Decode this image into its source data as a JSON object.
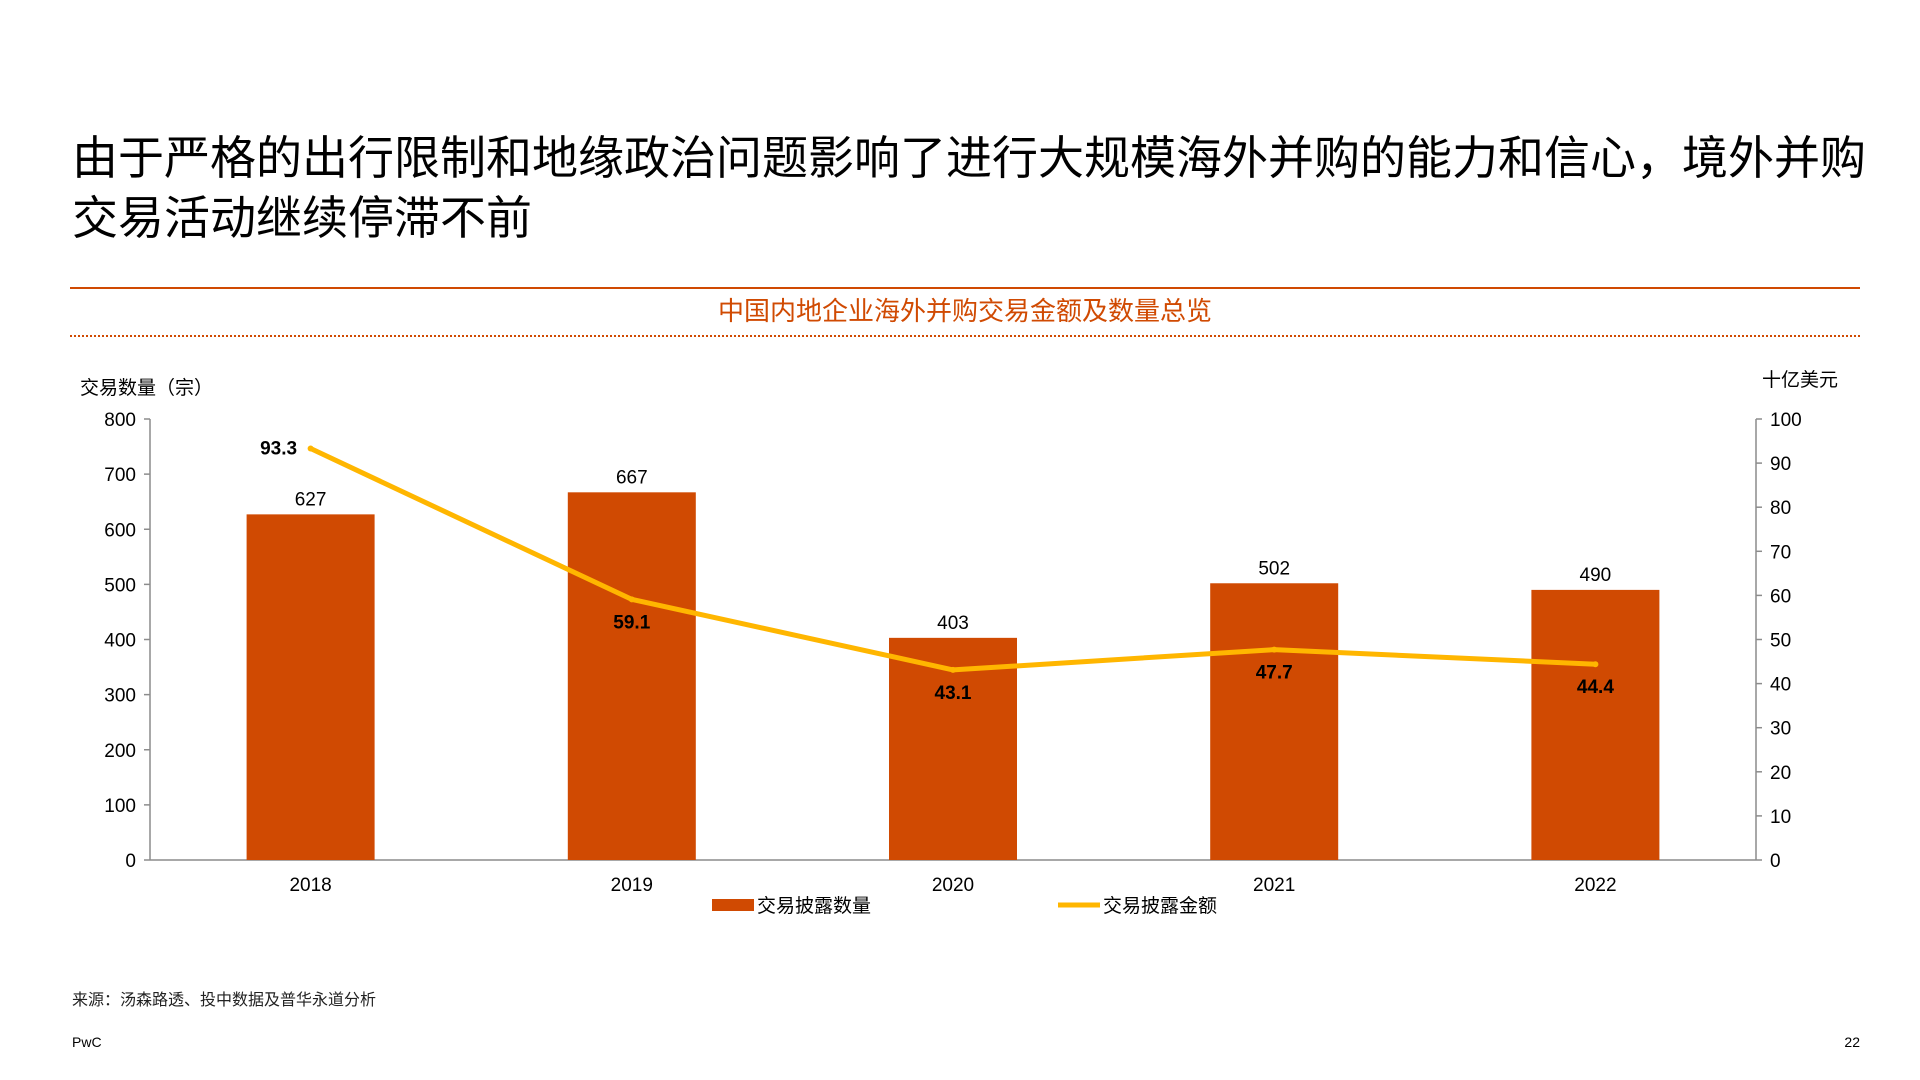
{
  "title": "由于严格的出行限制和地缘政治问题影响了进行大规模海外并购的能力和信心，境外并购交易活动继续停滞不前",
  "colors": {
    "accent": "#d04a02",
    "bar": "#d04a02",
    "line": "#ffb600"
  },
  "chart_data": {
    "type": "bar",
    "title": "中国内地企业海外并购交易金额及数量总览",
    "categories": [
      "2018",
      "2019",
      "2020",
      "2021",
      "2022"
    ],
    "y_left_label": "交易数量（宗）",
    "y_right_label": "十亿美元",
    "ylim_left": [
      0,
      800
    ],
    "ylim_right": [
      0,
      100
    ],
    "yticks_left": [
      0,
      100,
      200,
      300,
      400,
      500,
      600,
      700,
      800
    ],
    "yticks_right": [
      0,
      10,
      20,
      30,
      40,
      50,
      60,
      70,
      80,
      90,
      100
    ],
    "series": [
      {
        "name": "交易披露数量",
        "type": "bar",
        "axis": "left",
        "values": [
          627,
          667,
          403,
          502,
          490
        ],
        "labels": [
          "627",
          "667",
          "403",
          "502",
          "490"
        ]
      },
      {
        "name": "交易披露金额",
        "type": "line",
        "axis": "right",
        "values": [
          93.3,
          59.1,
          43.1,
          47.7,
          44.4
        ],
        "labels": [
          "93.3",
          "59.1",
          "43.1",
          "47.7",
          "44.4"
        ]
      }
    ],
    "legend_position": "bottom",
    "grid": false
  },
  "source": "来源：汤森路透、投中数据及普华永道分析",
  "brand": "PwC",
  "page_number": "22"
}
